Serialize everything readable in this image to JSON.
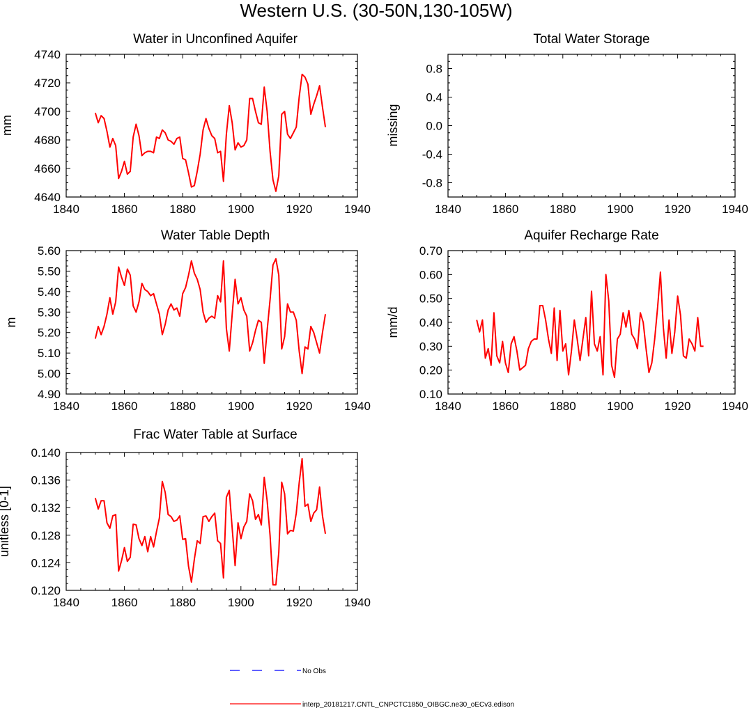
{
  "figure": {
    "title": "Western U.S. (30-50N,130-105W)",
    "line_color": "#ff0000",
    "obs_color": "#0000ff"
  },
  "legend": {
    "entries": [
      {
        "label": "No Obs",
        "style": "dashed",
        "color": "#0000ff"
      },
      {
        "label": "interp_20181217.CNTL_CNPCTC1850_OIBGC.ne30_oECv3.edison",
        "style": "solid",
        "color": "#ff0000"
      }
    ]
  },
  "chart_data": [
    {
      "type": "line",
      "title": "Water in Unconfined Aquifer",
      "xlabel": "",
      "ylabel": "mm",
      "xlim": [
        1840,
        1940
      ],
      "ylim": [
        4640,
        4740
      ],
      "xticks": [
        1840,
        1860,
        1880,
        1900,
        1920,
        1940
      ],
      "xtick_labels": [
        "1840",
        "1860",
        "1880",
        "1900",
        "1920",
        "1940"
      ],
      "yticks": [
        4640,
        4660,
        4680,
        4700,
        4720,
        4740
      ],
      "ytick_labels": [
        "4640",
        "4660",
        "4680",
        "4700",
        "4720",
        "4740"
      ],
      "series": [
        {
          "name": "interp_20181217.CNTL_CNPCTC1850_OIBGC.ne30_oECv3.edison",
          "x0": 1850,
          "dx": 1,
          "values": [
            4699,
            4692,
            4697,
            4695,
            4686,
            4675,
            4681,
            4676,
            4653,
            4658,
            4665,
            4656,
            4658,
            4682,
            4691,
            4683,
            4669,
            4671,
            4672,
            4672,
            4671,
            4682,
            4681,
            4687,
            4685,
            4680,
            4679,
            4677,
            4681,
            4682,
            4667,
            4666,
            4657,
            4647,
            4648,
            4658,
            4670,
            4687,
            4695,
            4688,
            4683,
            4681,
            4671,
            4672,
            4651,
            4684,
            4704,
            4692,
            4673,
            4678,
            4675,
            4676,
            4680,
            4709,
            4709,
            4700,
            4692,
            4691,
            4717,
            4700,
            4672,
            4652,
            4644,
            4655,
            4698,
            4700,
            4684,
            4681,
            4685,
            4689,
            4710,
            4726,
            4724,
            4719,
            4698,
            4705,
            4711,
            4718,
            4703,
            4689
          ]
        }
      ]
    },
    {
      "type": "line",
      "title": "Total Water Storage",
      "xlabel": "",
      "ylabel": "missing",
      "xlim": [
        1840,
        1940
      ],
      "ylim": [
        -1.0,
        1.0
      ],
      "xticks": [
        1840,
        1860,
        1880,
        1900,
        1920,
        1940
      ],
      "xtick_labels": [
        "1840",
        "1860",
        "1880",
        "1900",
        "1920",
        "1940"
      ],
      "yticks": [
        -0.8,
        -0.4,
        0.0,
        0.4,
        0.8
      ],
      "ytick_labels": [
        "-0.8",
        "-0.4",
        "0.0",
        "0.4",
        "0.8"
      ],
      "series": []
    },
    {
      "type": "line",
      "title": "Water Table Depth",
      "xlabel": "",
      "ylabel": "m",
      "xlim": [
        1840,
        1940
      ],
      "ylim": [
        4.9,
        5.6
      ],
      "xticks": [
        1840,
        1860,
        1880,
        1900,
        1920,
        1940
      ],
      "xtick_labels": [
        "1840",
        "1860",
        "1880",
        "1900",
        "1920",
        "1940"
      ],
      "yticks": [
        4.9,
        5.0,
        5.1,
        5.2,
        5.3,
        5.4,
        5.5,
        5.6
      ],
      "ytick_labels": [
        "4.90",
        "5.00",
        "5.10",
        "5.20",
        "5.30",
        "5.40",
        "5.50",
        "5.60"
      ],
      "series": [
        {
          "name": "interp_20181217.CNTL_CNPCTC1850_OIBGC.ne30_oECv3.edison",
          "x0": 1850,
          "dx": 1,
          "values": [
            5.17,
            5.23,
            5.19,
            5.23,
            5.29,
            5.37,
            5.29,
            5.35,
            5.52,
            5.47,
            5.43,
            5.51,
            5.48,
            5.33,
            5.3,
            5.35,
            5.44,
            5.41,
            5.4,
            5.38,
            5.39,
            5.34,
            5.29,
            5.19,
            5.24,
            5.31,
            5.34,
            5.31,
            5.32,
            5.28,
            5.39,
            5.42,
            5.48,
            5.55,
            5.49,
            5.46,
            5.41,
            5.3,
            5.25,
            5.27,
            5.28,
            5.27,
            5.38,
            5.35,
            5.55,
            5.22,
            5.11,
            5.29,
            5.46,
            5.34,
            5.37,
            5.31,
            5.28,
            5.11,
            5.15,
            5.21,
            5.26,
            5.25,
            5.05,
            5.21,
            5.36,
            5.53,
            5.56,
            5.48,
            5.12,
            5.18,
            5.34,
            5.3,
            5.3,
            5.26,
            5.11,
            5.0,
            5.13,
            5.12,
            5.23,
            5.2,
            5.15,
            5.1,
            5.2,
            5.29
          ]
        }
      ]
    },
    {
      "type": "line",
      "title": "Aquifer Recharge Rate",
      "xlabel": "",
      "ylabel": "mm/d",
      "xlim": [
        1840,
        1940
      ],
      "ylim": [
        0.1,
        0.7
      ],
      "xticks": [
        1840,
        1860,
        1880,
        1900,
        1920,
        1940
      ],
      "xtick_labels": [
        "1840",
        "1860",
        "1880",
        "1900",
        "1920",
        "1940"
      ],
      "yticks": [
        0.1,
        0.2,
        0.3,
        0.4,
        0.5,
        0.6,
        0.7
      ],
      "ytick_labels": [
        "0.10",
        "0.20",
        "0.30",
        "0.40",
        "0.50",
        "0.60",
        "0.70"
      ],
      "series": [
        {
          "name": "interp_20181217.CNTL_CNPCTC1850_OIBGC.ne30_oECv3.edison",
          "x0": 1850,
          "dx": 1,
          "values": [
            0.41,
            0.36,
            0.41,
            0.25,
            0.29,
            0.22,
            0.44,
            0.26,
            0.23,
            0.32,
            0.23,
            0.19,
            0.31,
            0.34,
            0.28,
            0.2,
            0.21,
            0.22,
            0.29,
            0.32,
            0.33,
            0.33,
            0.47,
            0.47,
            0.41,
            0.33,
            0.27,
            0.46,
            0.24,
            0.45,
            0.28,
            0.31,
            0.18,
            0.28,
            0.41,
            0.33,
            0.24,
            0.33,
            0.42,
            0.26,
            0.53,
            0.31,
            0.28,
            0.34,
            0.18,
            0.6,
            0.49,
            0.22,
            0.17,
            0.33,
            0.35,
            0.44,
            0.38,
            0.45,
            0.35,
            0.33,
            0.29,
            0.44,
            0.4,
            0.29,
            0.19,
            0.23,
            0.33,
            0.46,
            0.61,
            0.38,
            0.25,
            0.41,
            0.27,
            0.36,
            0.51,
            0.43,
            0.26,
            0.25,
            0.33,
            0.31,
            0.28,
            0.42,
            0.3,
            0.3
          ]
        }
      ]
    },
    {
      "type": "line",
      "title": "Frac Water Table at Surface",
      "xlabel": "",
      "ylabel": "unitless [0-1]",
      "xlim": [
        1840,
        1940
      ],
      "ylim": [
        0.12,
        0.14
      ],
      "xticks": [
        1840,
        1860,
        1880,
        1900,
        1920,
        1940
      ],
      "xtick_labels": [
        "1840",
        "1860",
        "1880",
        "1900",
        "1920",
        "1940"
      ],
      "yticks": [
        0.12,
        0.124,
        0.128,
        0.132,
        0.136,
        0.14
      ],
      "ytick_labels": [
        "0.120",
        "0.124",
        "0.128",
        "0.132",
        "0.136",
        "0.140"
      ],
      "series": [
        {
          "name": "interp_20181217.CNTL_CNPCTC1850_OIBGC.ne30_oECv3.edison",
          "x0": 1850,
          "dx": 1,
          "values": [
            0.1334,
            0.1318,
            0.133,
            0.133,
            0.1298,
            0.129,
            0.1308,
            0.131,
            0.1228,
            0.1243,
            0.1262,
            0.1242,
            0.1248,
            0.1296,
            0.1295,
            0.1275,
            0.1265,
            0.1278,
            0.1256,
            0.1278,
            0.1263,
            0.1285,
            0.1305,
            0.1358,
            0.1342,
            0.131,
            0.1307,
            0.13,
            0.1302,
            0.1308,
            0.1274,
            0.1275,
            0.1235,
            0.1212,
            0.1245,
            0.1272,
            0.1268,
            0.1307,
            0.1308,
            0.13,
            0.1307,
            0.1312,
            0.1272,
            0.1268,
            0.1218,
            0.1335,
            0.1345,
            0.129,
            0.1236,
            0.1298,
            0.1275,
            0.1292,
            0.13,
            0.134,
            0.133,
            0.1303,
            0.131,
            0.1295,
            0.1364,
            0.133,
            0.128,
            0.1208,
            0.1208,
            0.1255,
            0.1357,
            0.134,
            0.1282,
            0.1287,
            0.1286,
            0.1312,
            0.1356,
            0.1391,
            0.1322,
            0.1325,
            0.13,
            0.1312,
            0.1317,
            0.135,
            0.1308,
            0.1282
          ]
        }
      ]
    }
  ]
}
